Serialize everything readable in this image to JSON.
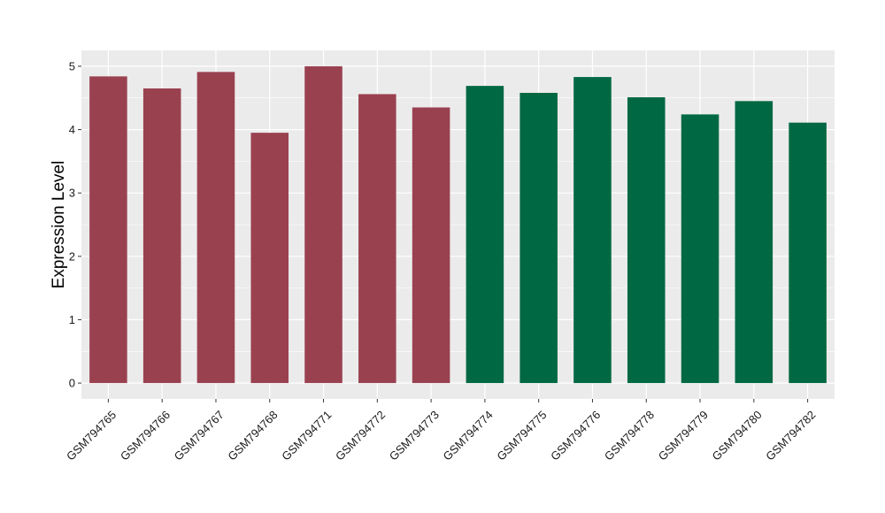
{
  "chart_data": {
    "type": "bar",
    "title": "",
    "xlabel": "",
    "ylabel": "Expression Level",
    "ylim": [
      -0.25,
      5.25
    ],
    "yticks": [
      0,
      1,
      2,
      3,
      4,
      5
    ],
    "grid": true,
    "legend": "none",
    "categories": [
      "GSM794765",
      "GSM794766",
      "GSM794767",
      "GSM794768",
      "GSM794771",
      "GSM794772",
      "GSM794773",
      "GSM794774",
      "GSM794775",
      "GSM794776",
      "GSM794778",
      "GSM794779",
      "GSM794780",
      "GSM794782"
    ],
    "values": [
      4.84,
      4.65,
      4.91,
      3.95,
      5.0,
      4.56,
      4.35,
      4.69,
      4.58,
      4.83,
      4.51,
      4.24,
      4.45,
      4.11
    ],
    "groups": [
      "a",
      "a",
      "a",
      "a",
      "a",
      "a",
      "a",
      "b",
      "b",
      "b",
      "b",
      "b",
      "b",
      "b"
    ],
    "colors": {
      "a": "#9a4150",
      "b": "#006843",
      "panel": "#ebebeb",
      "grid": "#ffffff"
    }
  }
}
